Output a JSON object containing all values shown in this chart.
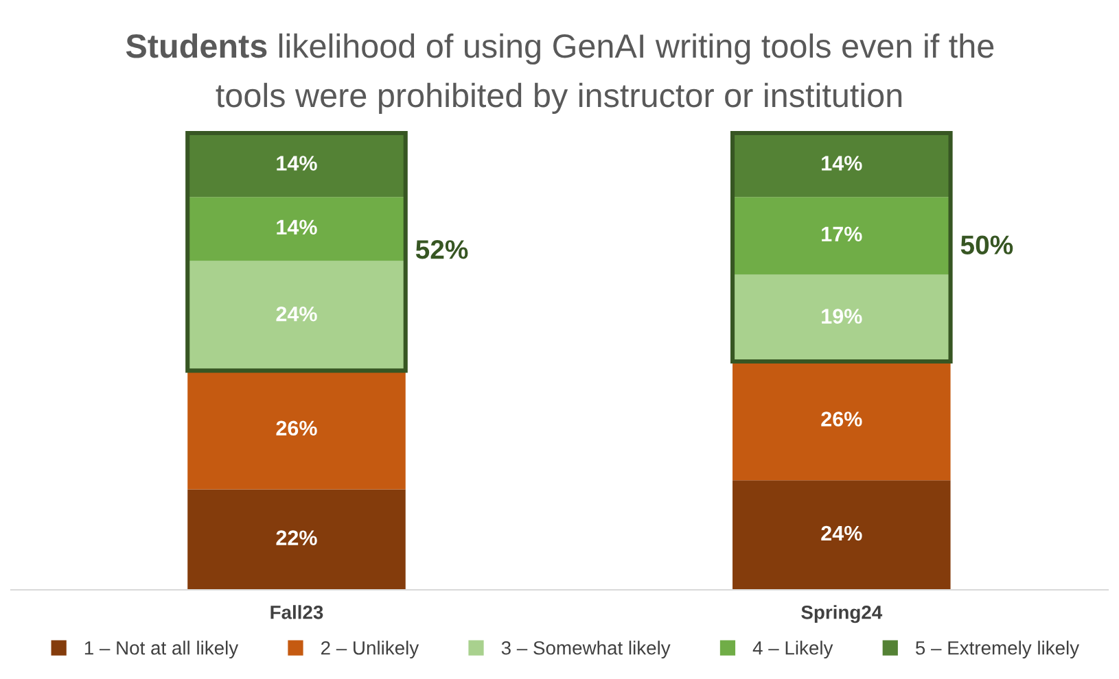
{
  "chart_data": {
    "type": "bar",
    "stacked": true,
    "title": "Students likelihood of using GenAI writing tools even if the tools were prohibited by instructor or institution",
    "categories": [
      "Fall23",
      "Spring24"
    ],
    "series": [
      {
        "name": "1 – Not at all likely",
        "color": "#843c0c",
        "values": [
          22,
          24
        ],
        "value_labels": [
          "22%",
          "24%"
        ]
      },
      {
        "name": "2 – Unlikely",
        "color": "#c55a11",
        "values": [
          26,
          26
        ],
        "value_labels": [
          "26%",
          "26%"
        ]
      },
      {
        "name": "3 – Somewhat likely",
        "color": "#a9d18e",
        "values": [
          24,
          19
        ],
        "value_labels": [
          "24%",
          "19%"
        ]
      },
      {
        "name": "4 – Likely",
        "color": "#70ad47",
        "values": [
          14,
          17
        ],
        "value_labels": [
          "14%",
          "17%"
        ]
      },
      {
        "name": "5 – Extremely likely",
        "color": "#548235",
        "values": [
          14,
          14
        ],
        "value_labels": [
          "14%",
          "14%"
        ]
      }
    ],
    "annotations": [
      "52%",
      "50%"
    ],
    "legend": "bottom",
    "grid": false
  }
}
